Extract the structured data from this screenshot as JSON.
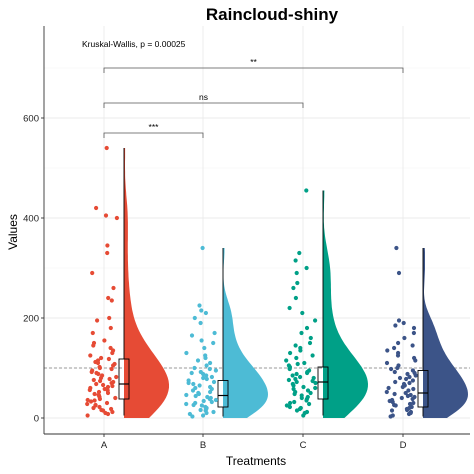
{
  "chart_data": {
    "type": "raincloud",
    "title": "Raincloud-shiny",
    "xlabel": "Treatments",
    "ylabel": "Values",
    "ylim": [
      -30,
      760
    ],
    "yticks": [
      0,
      200,
      400,
      600
    ],
    "grid": true,
    "reference_line": 100,
    "annotation": "Kruskal-Wallis, p = 0.00025",
    "categories": [
      "A",
      "B",
      "C",
      "D"
    ],
    "colors": [
      "#E64B35",
      "#4DBBD5",
      "#00A087",
      "#3C5488"
    ],
    "groups": [
      {
        "name": "A",
        "max": 540,
        "q1": 38,
        "median": 68,
        "q3": 118,
        "whisker_low": 5,
        "whisker_high": 540,
        "points": [
          540,
          420,
          405,
          400,
          345,
          330,
          290,
          260,
          240,
          235,
          200,
          195,
          180,
          170,
          155,
          150,
          145,
          140,
          135,
          130,
          125,
          120,
          118,
          115,
          112,
          110,
          108,
          105,
          102,
          100,
          98,
          95,
          92,
          90,
          88,
          85,
          82,
          80,
          78,
          76,
          74,
          72,
          70,
          68,
          66,
          64,
          62,
          60,
          58,
          56,
          55,
          52,
          50,
          48,
          46,
          45,
          42,
          40,
          38,
          36,
          35,
          33,
          30,
          28,
          26,
          25,
          22,
          20,
          18,
          16,
          15,
          12,
          10,
          8,
          5
        ]
      },
      {
        "name": "B",
        "max": 340,
        "q1": 22,
        "median": 45,
        "q3": 75,
        "whisker_low": 3,
        "whisker_high": 340,
        "points": [
          340,
          225,
          215,
          210,
          200,
          190,
          170,
          165,
          155,
          150,
          140,
          130,
          125,
          120,
          115,
          110,
          105,
          100,
          98,
          95,
          92,
          90,
          88,
          85,
          82,
          80,
          78,
          75,
          72,
          70,
          68,
          65,
          62,
          60,
          58,
          55,
          52,
          50,
          48,
          46,
          44,
          42,
          40,
          38,
          36,
          34,
          32,
          30,
          28,
          26,
          25,
          22,
          20,
          18,
          16,
          15,
          12,
          10,
          8,
          5,
          3
        ]
      },
      {
        "name": "C",
        "max": 455,
        "q1": 38,
        "median": 72,
        "q3": 102,
        "whisker_low": 5,
        "whisker_high": 455,
        "points": [
          455,
          330,
          315,
          300,
          290,
          270,
          260,
          240,
          220,
          210,
          195,
          180,
          170,
          160,
          150,
          145,
          140,
          135,
          130,
          125,
          120,
          115,
          110,
          108,
          105,
          102,
          100,
          98,
          95,
          92,
          90,
          88,
          85,
          82,
          80,
          78,
          76,
          74,
          72,
          70,
          68,
          65,
          62,
          60,
          58,
          55,
          52,
          50,
          48,
          45,
          42,
          40,
          38,
          35,
          32,
          30,
          28,
          25,
          22,
          20,
          18,
          15,
          12,
          10,
          5
        ]
      },
      {
        "name": "D",
        "max": 340,
        "q1": 22,
        "median": 50,
        "q3": 95,
        "whisker_low": 3,
        "whisker_high": 340,
        "points": [
          340,
          290,
          195,
          190,
          185,
          180,
          170,
          160,
          150,
          145,
          140,
          135,
          130,
          125,
          120,
          115,
          110,
          105,
          100,
          98,
          95,
          92,
          90,
          88,
          85,
          82,
          80,
          78,
          75,
          72,
          70,
          68,
          65,
          62,
          60,
          58,
          55,
          52,
          50,
          48,
          46,
          44,
          42,
          40,
          38,
          36,
          34,
          32,
          30,
          28,
          26,
          25,
          22,
          20,
          18,
          16,
          15,
          12,
          10,
          8,
          5,
          3
        ]
      }
    ],
    "comparisons": [
      {
        "from": "A",
        "to": "B",
        "label": "***",
        "y": 570
      },
      {
        "from": "A",
        "to": "C",
        "label": "ns",
        "y": 630
      },
      {
        "from": "A",
        "to": "D",
        "label": "**",
        "y": 700
      }
    ]
  }
}
